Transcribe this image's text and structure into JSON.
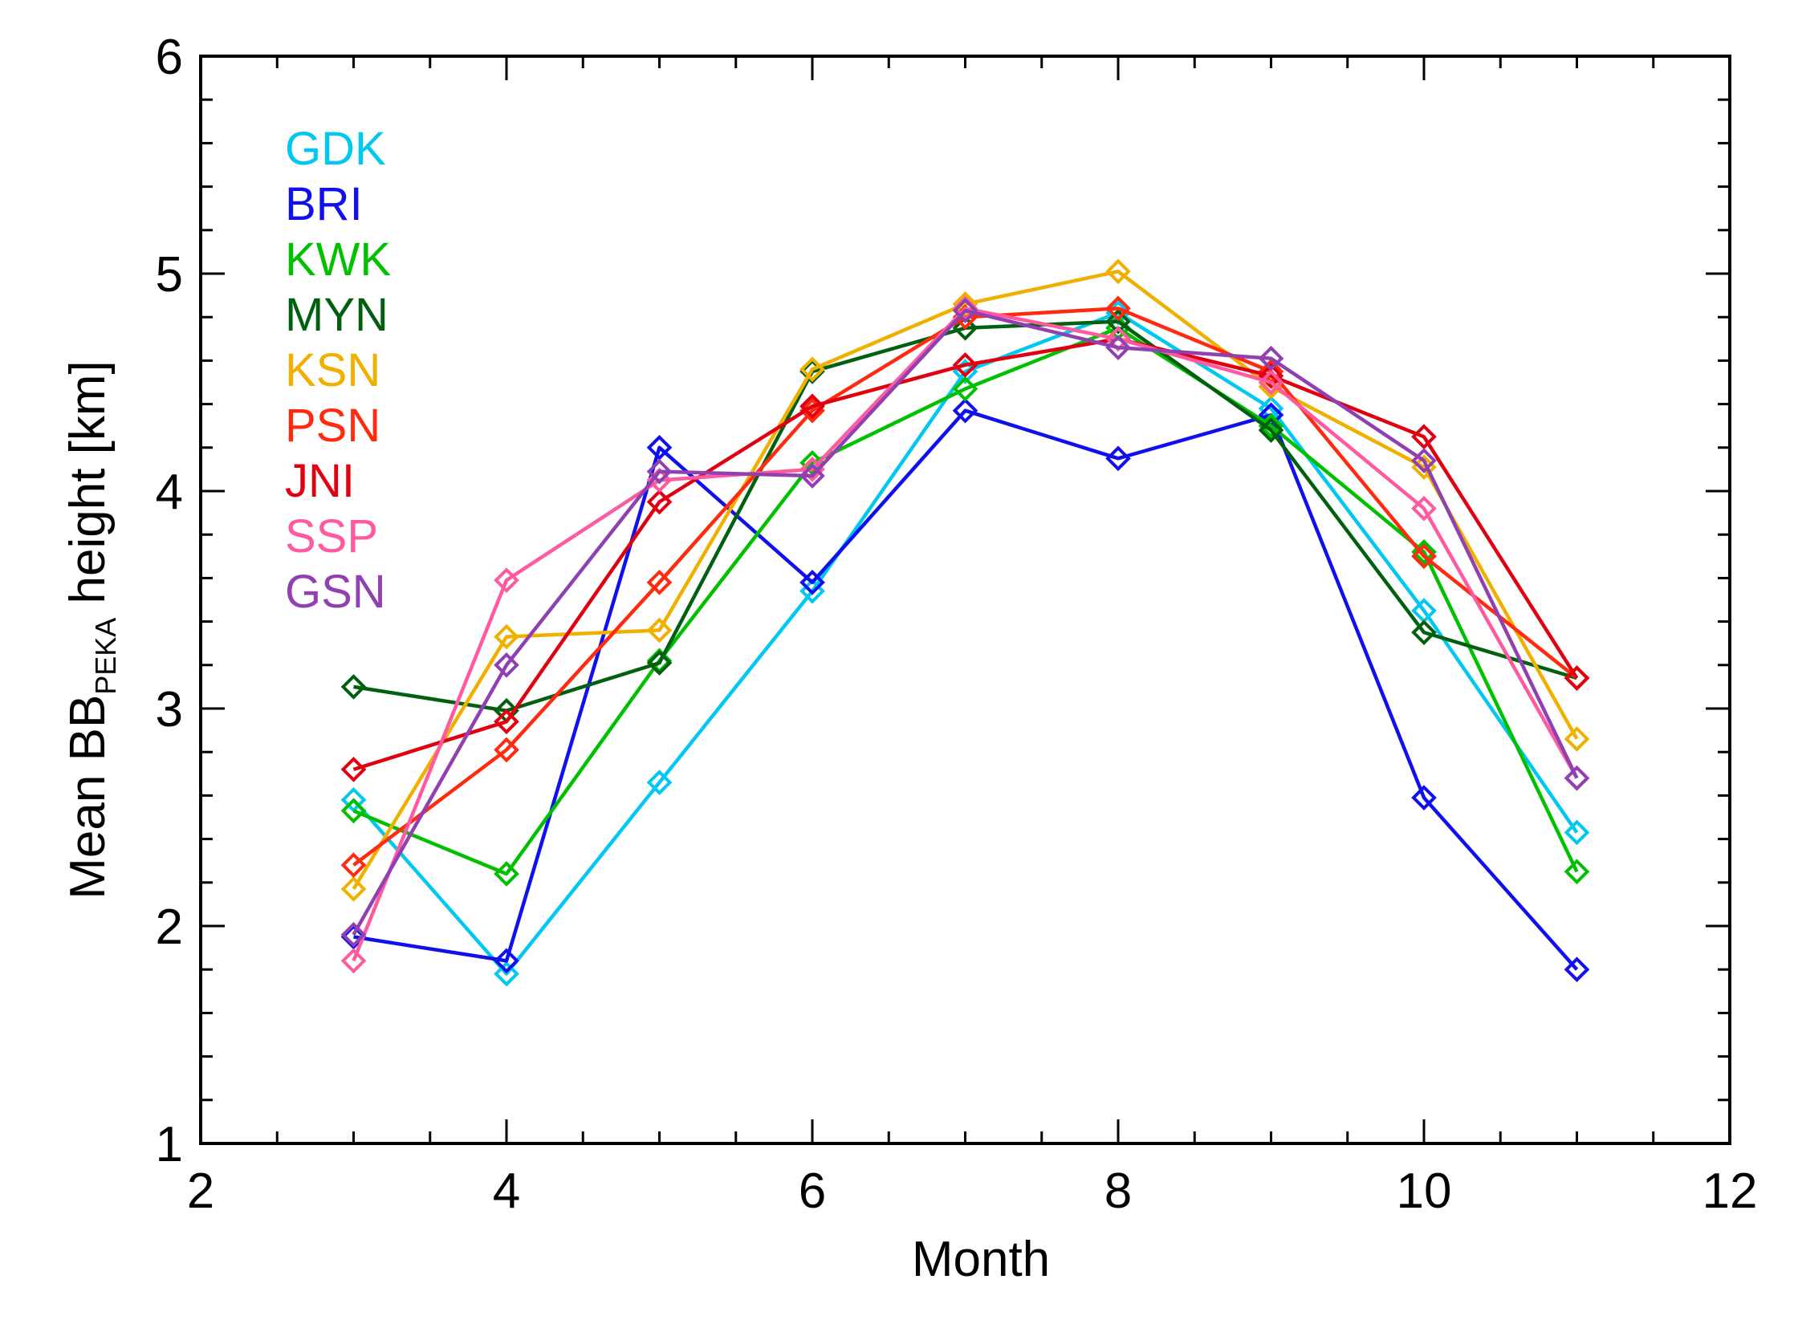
{
  "chart_data": {
    "type": "line",
    "title": "",
    "xlabel": "Month",
    "ylabel": {
      "prefix": "Mean BB",
      "subscript": "PEKA",
      "suffix": " height [km]"
    },
    "xlim": [
      2,
      12
    ],
    "ylim": [
      1,
      6
    ],
    "x_ticks": [
      2,
      4,
      6,
      8,
      10,
      12
    ],
    "x_minor_step": 0.5,
    "y_ticks": [
      1,
      2,
      3,
      4,
      5,
      6
    ],
    "y_minor_step": 0.2,
    "grid": false,
    "legend_position": "top-left",
    "marker": "diamond",
    "x": [
      3,
      4,
      5,
      6,
      7,
      8,
      9,
      10,
      11
    ],
    "series": [
      {
        "name": "GDK",
        "color": "#00c8f0",
        "values": [
          2.58,
          1.78,
          2.66,
          3.54,
          4.55,
          4.82,
          4.38,
          3.45,
          2.43
        ]
      },
      {
        "name": "BRI",
        "color": "#1010ee",
        "values": [
          1.95,
          1.84,
          4.2,
          3.58,
          4.37,
          4.15,
          4.35,
          2.59,
          1.8
        ]
      },
      {
        "name": "KWK",
        "color": "#00c000",
        "values": [
          2.53,
          2.24,
          3.22,
          4.13,
          4.47,
          4.75,
          4.3,
          3.72,
          2.25
        ]
      },
      {
        "name": "MYN",
        "color": "#006010",
        "values": [
          3.1,
          2.99,
          3.21,
          4.55,
          4.75,
          4.78,
          4.28,
          3.35,
          3.14
        ]
      },
      {
        "name": "KSN",
        "color": "#f0b000",
        "values": [
          2.17,
          3.33,
          3.36,
          4.56,
          4.86,
          5.01,
          4.48,
          4.11,
          2.86
        ]
      },
      {
        "name": "PSN",
        "color": "#ff2a10",
        "values": [
          2.28,
          2.81,
          3.58,
          4.37,
          4.8,
          4.84,
          4.55,
          3.7,
          3.14
        ]
      },
      {
        "name": "JNI",
        "color": "#e00010",
        "values": [
          2.72,
          2.94,
          3.95,
          4.39,
          4.58,
          4.7,
          4.53,
          4.25,
          3.14
        ]
      },
      {
        "name": "SSP",
        "color": "#ff5aa0",
        "values": [
          1.84,
          3.59,
          4.05,
          4.1,
          4.84,
          4.7,
          4.5,
          3.92,
          2.68
        ]
      },
      {
        "name": "GSN",
        "color": "#9040b0",
        "values": [
          1.96,
          3.2,
          4.09,
          4.07,
          4.83,
          4.66,
          4.61,
          4.14,
          2.68
        ]
      }
    ]
  }
}
